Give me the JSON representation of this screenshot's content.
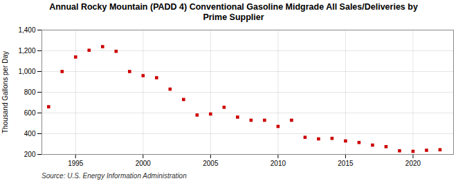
{
  "chart_data": {
    "type": "scatter",
    "title": "Annual Rocky Mountain (PADD 4) Conventional Gasoline Midgrade All Sales/Deliveries by\nPrime Supplier",
    "ylabel": "Thousand Gallons per Day",
    "source": "Source: U.S. Energy Information Administration",
    "x": [
      1993,
      1994,
      1995,
      1996,
      1997,
      1998,
      1999,
      2000,
      2001,
      2002,
      2003,
      2004,
      2005,
      2006,
      2007,
      2008,
      2009,
      2010,
      2011,
      2012,
      2013,
      2014,
      2015,
      2016,
      2017,
      2018,
      2019,
      2020,
      2021,
      2022
    ],
    "values": [
      660,
      1000,
      1140,
      1205,
      1240,
      1195,
      1000,
      960,
      940,
      830,
      730,
      580,
      590,
      655,
      560,
      530,
      530,
      470,
      530,
      365,
      350,
      355,
      330,
      315,
      290,
      275,
      235,
      230,
      240,
      245
    ],
    "color": "#cc0000",
    "marker": "square",
    "xlim": [
      1992.5,
      2023
    ],
    "xticks": [
      1995,
      2000,
      2005,
      2010,
      2015,
      2020
    ],
    "ylim": [
      200,
      1400
    ],
    "yticks": [
      200,
      400,
      600,
      800,
      {
        "value": 1000,
        "label": "1,000"
      },
      {
        "value": 1200,
        "label": "1,200"
      },
      {
        "value": 1400,
        "label": "1,400"
      }
    ],
    "grid": true
  }
}
